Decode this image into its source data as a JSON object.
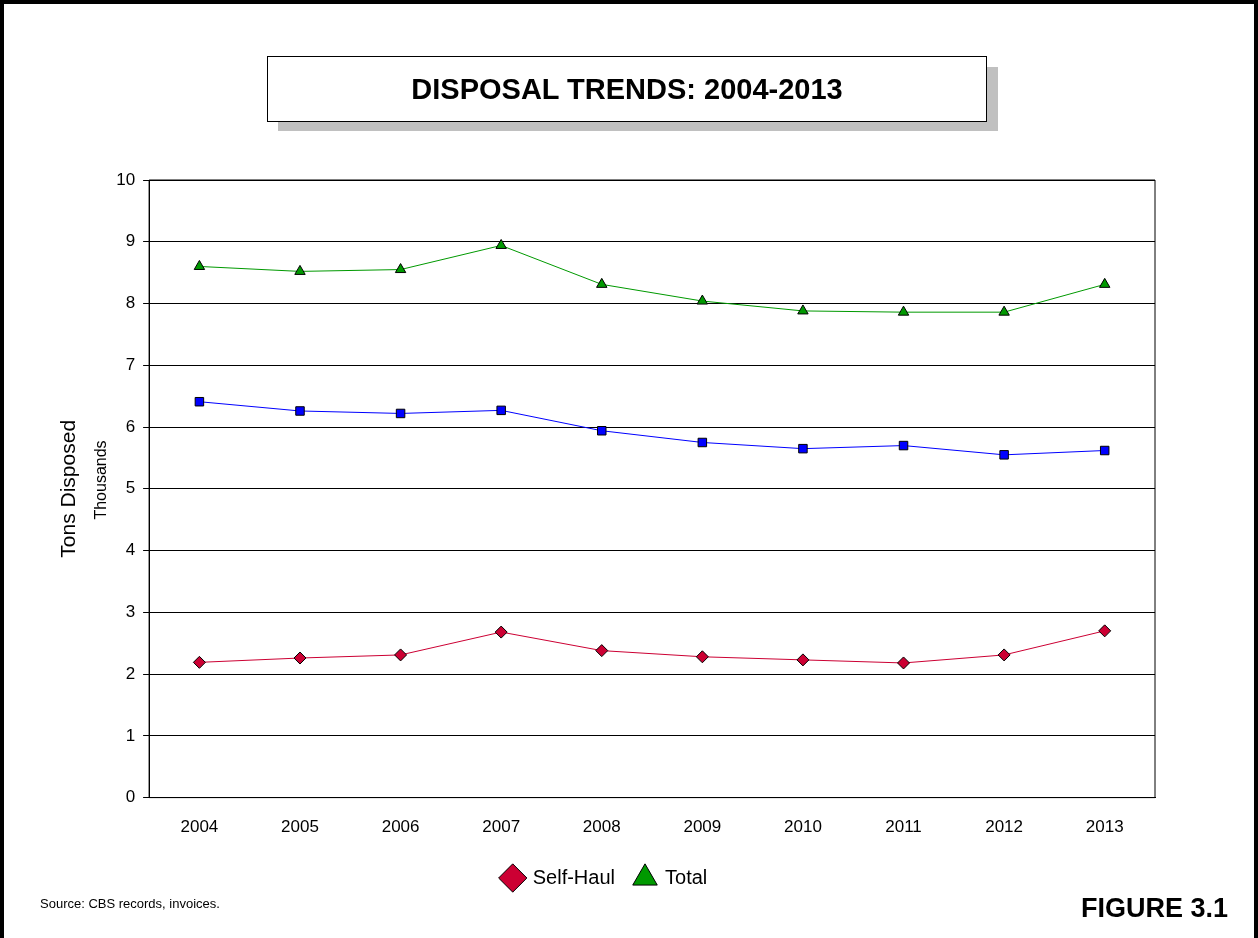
{
  "chart_data": {
    "type": "line",
    "title": "DISPOSAL TRENDS: 2004-2013",
    "ylabel": "Tons Disposed",
    "categories": [
      "2004",
      "2005",
      "2006",
      "2007",
      "2008",
      "2009",
      "2010",
      "2011",
      "2012",
      "2013"
    ],
    "series": [
      {
        "color": "#0000ff",
        "marker": "square",
        "values": [
          6.41,
          6.26,
          6.22,
          6.27,
          5.94,
          5.75,
          5.65,
          5.7,
          5.55,
          5.62
        ]
      },
      {
        "name": "Self-Haul",
        "color": "#cc0033",
        "marker": "diamond",
        "values": [
          2.19,
          2.26,
          2.31,
          2.68,
          2.38,
          2.28,
          2.23,
          2.18,
          2.31,
          2.7
        ]
      },
      {
        "name": "Total",
        "color": "#009900",
        "marker": "triangle",
        "values": [
          8.6,
          8.52,
          8.55,
          8.94,
          8.31,
          8.04,
          7.88,
          7.86,
          7.86,
          8.31
        ]
      }
    ],
    "ylim": [
      0,
      10
    ],
    "yticks": [
      0,
      1,
      2,
      3,
      4,
      5,
      6,
      7,
      8,
      9,
      10
    ],
    "grid": "y",
    "legend": "bottom",
    "line_style": "solid",
    "annotations": [
      "Thousands",
      "Source:  CBS records, invoices.",
      "FIGURE 3.1"
    ]
  }
}
